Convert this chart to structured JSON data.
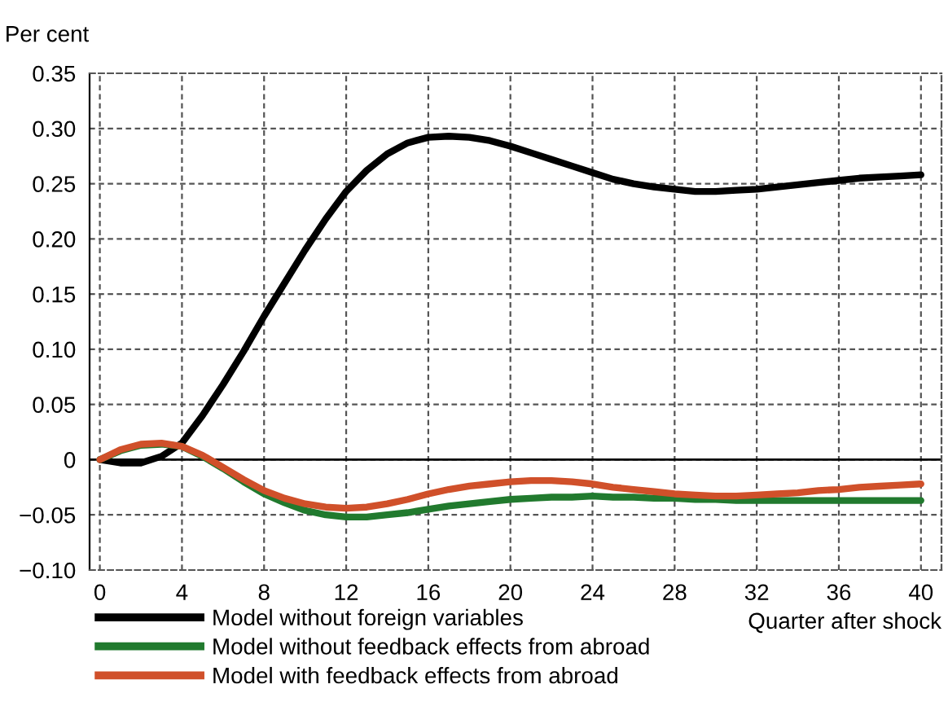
{
  "chart_data": {
    "type": "line",
    "ylabel": "Per cent",
    "xlabel": "Quarter after shock",
    "x": [
      0,
      1,
      2,
      3,
      4,
      5,
      6,
      7,
      8,
      9,
      10,
      11,
      12,
      13,
      14,
      15,
      16,
      17,
      18,
      19,
      20,
      21,
      22,
      23,
      24,
      25,
      26,
      27,
      28,
      29,
      30,
      31,
      32,
      33,
      34,
      35,
      36,
      37,
      38,
      39,
      40
    ],
    "series": [
      {
        "name": "Model without foreign variables",
        "color": "#000000",
        "values": [
          0,
          -0.003,
          -0.003,
          0.003,
          0.015,
          0.04,
          0.068,
          0.098,
          0.13,
          0.16,
          0.19,
          0.218,
          0.243,
          0.262,
          0.277,
          0.287,
          0.292,
          0.293,
          0.292,
          0.289,
          0.284,
          0.278,
          0.272,
          0.266,
          0.26,
          0.254,
          0.25,
          0.247,
          0.245,
          0.243,
          0.243,
          0.244,
          0.245,
          0.247,
          0.249,
          0.251,
          0.253,
          0.255,
          0.256,
          0.257,
          0.258
        ]
      },
      {
        "name": "Model without feedback effects from abroad",
        "color": "#217a2e",
        "values": [
          0,
          0.008,
          0.013,
          0.014,
          0.012,
          0.003,
          -0.008,
          -0.02,
          -0.031,
          -0.039,
          -0.046,
          -0.05,
          -0.052,
          -0.052,
          -0.05,
          -0.048,
          -0.045,
          -0.042,
          -0.04,
          -0.038,
          -0.036,
          -0.035,
          -0.034,
          -0.034,
          -0.033,
          -0.034,
          -0.034,
          -0.035,
          -0.035,
          -0.036,
          -0.036,
          -0.037,
          -0.037,
          -0.037,
          -0.037,
          -0.037,
          -0.037,
          -0.037,
          -0.037,
          -0.037,
          -0.037
        ]
      },
      {
        "name": "Model with feedback effects from abroad",
        "color": "#d0502a",
        "values": [
          0,
          0.009,
          0.014,
          0.015,
          0.012,
          0.004,
          -0.007,
          -0.018,
          -0.028,
          -0.035,
          -0.04,
          -0.043,
          -0.044,
          -0.043,
          -0.04,
          -0.036,
          -0.031,
          -0.027,
          -0.024,
          -0.022,
          -0.02,
          -0.019,
          -0.019,
          -0.02,
          -0.022,
          -0.025,
          -0.027,
          -0.029,
          -0.031,
          -0.032,
          -0.033,
          -0.033,
          -0.032,
          -0.031,
          -0.03,
          -0.028,
          -0.027,
          -0.025,
          -0.024,
          -0.023,
          -0.022
        ]
      }
    ],
    "xlim": [
      -0.5,
      41
    ],
    "xticks": [
      0,
      4,
      8,
      12,
      16,
      20,
      24,
      28,
      32,
      36,
      40
    ],
    "ylim": [
      -0.1,
      0.35
    ],
    "yticks": [
      {
        "value": -0.1,
        "label": "−0.10"
      },
      {
        "value": -0.05,
        "label": "−0.05"
      },
      0,
      {
        "value": 0.05,
        "label": "0.05"
      },
      {
        "value": 0.1,
        "label": "0.10"
      },
      {
        "value": 0.15,
        "label": "0.15"
      },
      {
        "value": 0.2,
        "label": "0.20"
      },
      {
        "value": 0.25,
        "label": "0.25"
      },
      {
        "value": 0.3,
        "label": "0.30"
      },
      0.35
    ],
    "ref_lines": [
      {
        "axis": "y",
        "value": 0,
        "color": "#000000",
        "line_style": "solid"
      }
    ],
    "grid": true,
    "legend": "bottom left",
    "line_style": "solid",
    "marker": "none"
  }
}
